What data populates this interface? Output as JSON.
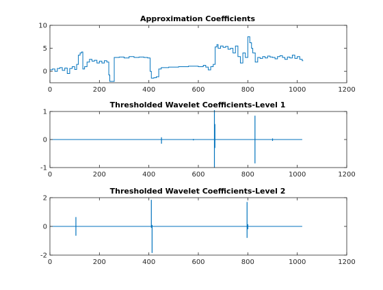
{
  "chart_data": [
    {
      "type": "line",
      "title": "Approximation Coefficients",
      "xlim": [
        0,
        1200
      ],
      "ylim": [
        -2.5,
        10
      ],
      "xticks": [
        0,
        200,
        400,
        600,
        800,
        1000,
        1200
      ],
      "yticks": [
        0,
        5,
        10
      ],
      "series": [
        {
          "color": "#0072BD",
          "style": "step",
          "x": [
            0,
            10,
            20,
            30,
            40,
            50,
            60,
            70,
            80,
            90,
            100,
            108,
            115,
            122,
            128,
            133,
            140,
            150,
            160,
            170,
            180,
            190,
            200,
            210,
            220,
            230,
            238,
            242,
            260,
            280,
            300,
            320,
            340,
            360,
            380,
            395,
            405,
            410,
            420,
            430,
            440,
            450,
            480,
            520,
            560,
            600,
            620,
            630,
            640,
            650,
            660,
            668,
            675,
            680,
            690,
            700,
            710,
            720,
            730,
            740,
            750,
            760,
            770,
            780,
            790,
            800,
            808,
            815,
            820,
            830,
            840,
            850,
            860,
            870,
            880,
            890,
            900,
            910,
            920,
            930,
            940,
            950,
            960,
            970,
            980,
            990,
            1000,
            1010,
            1020
          ],
          "y": [
            0.3,
            0.5,
            0.0,
            0.6,
            0.8,
            0.2,
            0.7,
            -0.5,
            0.6,
            1.0,
            0.4,
            1.5,
            3.5,
            4.0,
            4.2,
            0.5,
            1.0,
            2.0,
            2.6,
            2.2,
            2.4,
            1.8,
            2.2,
            1.8,
            2.3,
            2.0,
            -0.8,
            -2.2,
            3.0,
            3.1,
            2.9,
            3.2,
            3.0,
            3.1,
            3.0,
            2.9,
            0.0,
            -1.5,
            -1.4,
            -1.2,
            0.5,
            0.8,
            0.9,
            1.0,
            1.1,
            1.0,
            1.3,
            0.9,
            0.3,
            1.0,
            1.5,
            5.3,
            5.8,
            5.0,
            5.5,
            5.2,
            5.4,
            4.8,
            5.0,
            4.0,
            5.5,
            3.2,
            1.8,
            4.0,
            3.0,
            7.5,
            6.2,
            5.0,
            4.0,
            2.0,
            3.0,
            2.8,
            3.2,
            2.9,
            3.3,
            3.1,
            3.0,
            2.7,
            3.2,
            3.4,
            3.0,
            2.6,
            3.1,
            2.9,
            3.5,
            2.8,
            3.2,
            2.6,
            2.3
          ]
        }
      ]
    },
    {
      "type": "line",
      "title": "Thresholded Wavelet Coefficients-Level 1",
      "xlim": [
        0,
        1200
      ],
      "ylim": [
        -1,
        1
      ],
      "xticks": [
        0,
        200,
        400,
        600,
        800,
        1000,
        1200
      ],
      "yticks": [
        -1,
        0,
        1
      ],
      "series": [
        {
          "color": "#0072BD",
          "style": "spikes",
          "baseline_range": [
            0,
            1020
          ],
          "spikes": [
            {
              "x": 451,
              "low": -0.15,
              "high": 0.08
            },
            {
              "x": 580,
              "low": -0.03,
              "high": 0.02
            },
            {
              "x": 665,
              "low": -1.0,
              "high": 1.05
            },
            {
              "x": 667,
              "low": -0.3,
              "high": 0.55
            },
            {
              "x": 829,
              "low": -0.85,
              "high": 0.85
            },
            {
              "x": 900,
              "low": -0.05,
              "high": 0.04
            }
          ]
        }
      ]
    },
    {
      "type": "line",
      "title": "Thresholded Wavelet Coefficients-Level 2",
      "xlim": [
        0,
        1200
      ],
      "ylim": [
        -2,
        2
      ],
      "xticks": [
        0,
        200,
        400,
        600,
        800,
        1000,
        1200
      ],
      "yticks": [
        -2,
        0,
        2
      ],
      "series": [
        {
          "color": "#0072BD",
          "style": "spikes",
          "baseline_range": [
            0,
            1020
          ],
          "spikes": [
            {
              "x": 105,
              "low": -0.65,
              "high": 0.65
            },
            {
              "x": 410,
              "low": -0.1,
              "high": 1.85
            },
            {
              "x": 413,
              "low": -1.85,
              "high": 0.1
            },
            {
              "x": 797,
              "low": -0.8,
              "high": 1.7
            },
            {
              "x": 800,
              "low": -0.2,
              "high": 0.15
            }
          ]
        }
      ]
    }
  ]
}
